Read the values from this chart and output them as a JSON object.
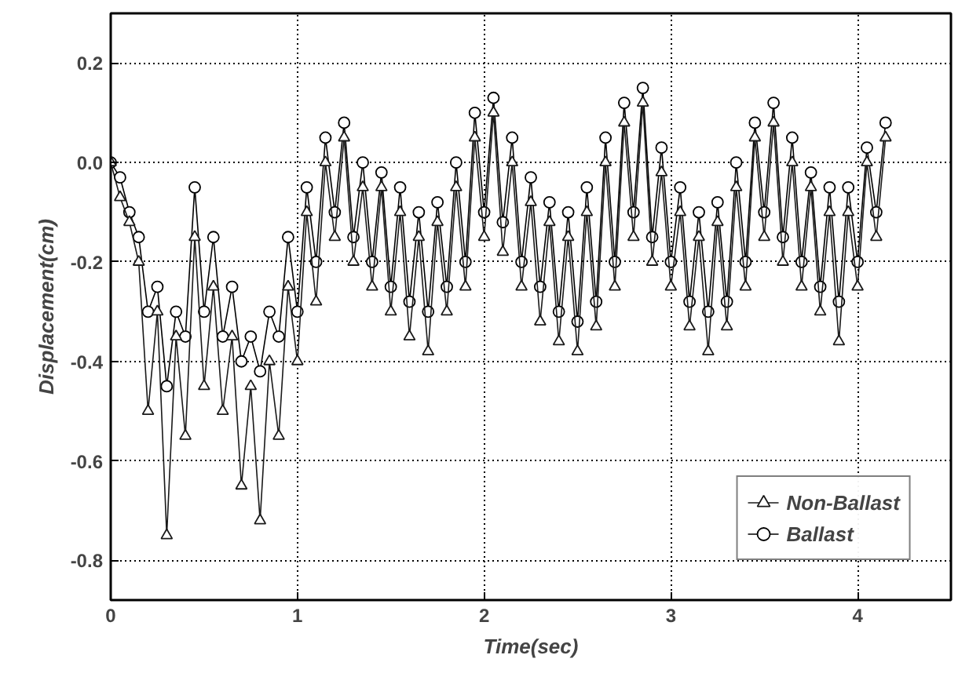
{
  "chart_data": {
    "type": "line",
    "xlabel": "Time(sec)",
    "ylabel": "Displacement(cm)",
    "x": [
      0,
      0.05,
      0.1,
      0.15,
      0.2,
      0.25,
      0.3,
      0.35,
      0.4,
      0.45,
      0.5,
      0.55,
      0.6,
      0.65,
      0.7,
      0.75,
      0.8,
      0.85,
      0.9,
      0.95,
      1.0,
      1.05,
      1.1,
      1.15,
      1.2,
      1.25,
      1.3,
      1.35,
      1.4,
      1.45,
      1.5,
      1.55,
      1.6,
      1.65,
      1.7,
      1.75,
      1.8,
      1.85,
      1.9,
      1.95,
      2.0,
      2.05,
      2.1,
      2.15,
      2.2,
      2.25,
      2.3,
      2.35,
      2.4,
      2.45,
      2.5,
      2.55,
      2.6,
      2.65,
      2.7,
      2.75,
      2.8,
      2.85,
      2.9,
      2.95,
      3.0,
      3.05,
      3.1,
      3.15,
      3.2,
      3.25,
      3.3,
      3.35,
      3.4,
      3.45,
      3.5,
      3.55,
      3.6,
      3.65,
      3.7,
      3.75,
      3.8,
      3.85,
      3.9,
      3.95,
      4.0,
      4.05,
      4.1,
      4.15
    ],
    "series": [
      {
        "name": "Non-Ballast",
        "color": "#1a1a1a",
        "marker": "triangle",
        "values": [
          0.0,
          -0.07,
          -0.12,
          -0.2,
          -0.5,
          -0.3,
          -0.75,
          -0.35,
          -0.55,
          -0.15,
          -0.45,
          -0.25,
          -0.5,
          -0.35,
          -0.65,
          -0.45,
          -0.72,
          -0.4,
          -0.55,
          -0.25,
          -0.4,
          -0.1,
          -0.28,
          0.0,
          -0.15,
          0.05,
          -0.2,
          -0.05,
          -0.25,
          -0.05,
          -0.3,
          -0.1,
          -0.35,
          -0.15,
          -0.38,
          -0.12,
          -0.3,
          -0.05,
          -0.25,
          0.05,
          -0.15,
          0.1,
          -0.18,
          0.0,
          -0.25,
          -0.08,
          -0.32,
          -0.12,
          -0.36,
          -0.15,
          -0.38,
          -0.1,
          -0.33,
          0.0,
          -0.25,
          0.08,
          -0.15,
          0.12,
          -0.2,
          -0.02,
          -0.25,
          -0.1,
          -0.33,
          -0.15,
          -0.38,
          -0.12,
          -0.33,
          -0.05,
          -0.25,
          0.05,
          -0.15,
          0.08,
          -0.2,
          0.0,
          -0.25,
          -0.05,
          -0.3,
          -0.1,
          -0.36,
          -0.1,
          -0.25,
          0.0,
          -0.15,
          0.05
        ]
      },
      {
        "name": "Ballast",
        "color": "#000000",
        "marker": "circle",
        "values": [
          0.0,
          -0.03,
          -0.1,
          -0.15,
          -0.3,
          -0.25,
          -0.45,
          -0.3,
          -0.35,
          -0.05,
          -0.3,
          -0.15,
          -0.35,
          -0.25,
          -0.4,
          -0.35,
          -0.42,
          -0.3,
          -0.35,
          -0.15,
          -0.3,
          -0.05,
          -0.2,
          0.05,
          -0.1,
          0.08,
          -0.15,
          0.0,
          -0.2,
          -0.02,
          -0.25,
          -0.05,
          -0.28,
          -0.1,
          -0.3,
          -0.08,
          -0.25,
          0.0,
          -0.2,
          0.1,
          -0.1,
          0.13,
          -0.12,
          0.05,
          -0.2,
          -0.03,
          -0.25,
          -0.08,
          -0.3,
          -0.1,
          -0.32,
          -0.05,
          -0.28,
          0.05,
          -0.2,
          0.12,
          -0.1,
          0.15,
          -0.15,
          0.03,
          -0.2,
          -0.05,
          -0.28,
          -0.1,
          -0.3,
          -0.08,
          -0.28,
          0.0,
          -0.2,
          0.08,
          -0.1,
          0.12,
          -0.15,
          0.05,
          -0.2,
          -0.02,
          -0.25,
          -0.05,
          -0.28,
          -0.05,
          -0.2,
          0.03,
          -0.1,
          0.08
        ]
      }
    ],
    "xlim": [
      0,
      4.5
    ],
    "ylim": [
      -0.88,
      0.3
    ],
    "xticks": [
      0,
      1,
      2,
      3,
      4
    ],
    "yticks": [
      {
        "value": -0.8,
        "label": "-0.8"
      },
      {
        "value": -0.6,
        "label": "-0.6"
      },
      {
        "value": -0.4,
        "label": "-0.4"
      },
      {
        "value": -0.2,
        "label": "-0.2"
      },
      {
        "value": 0,
        "label": "0.0"
      },
      {
        "value": 0.2,
        "label": "0.2"
      }
    ],
    "grid": true,
    "legend": "bottom right",
    "line_style": "solid"
  }
}
